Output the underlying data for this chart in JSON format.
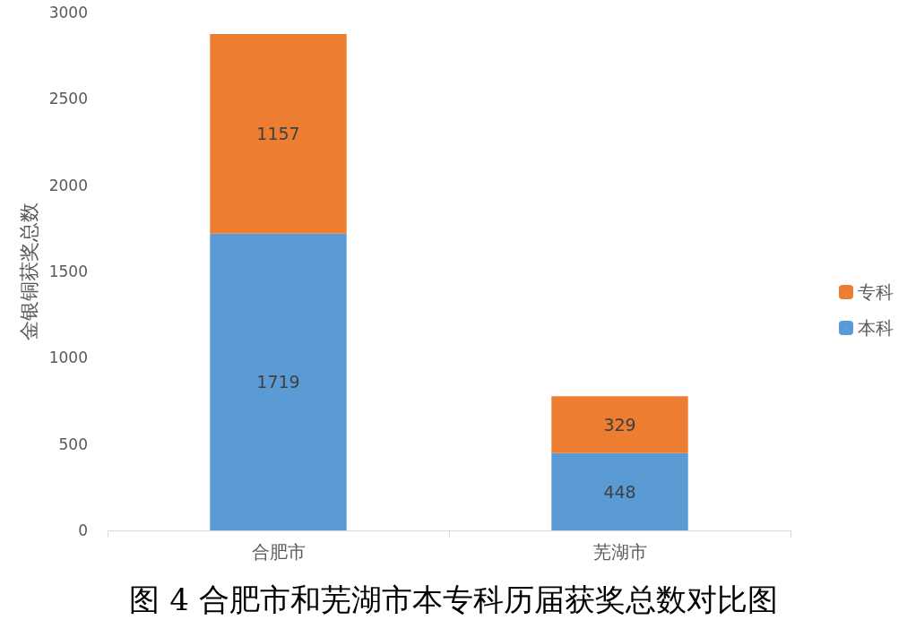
{
  "chart_data": {
    "type": "bar",
    "stacked": true,
    "categories": [
      "合肥市",
      "芜湖市"
    ],
    "series": [
      {
        "name": "本科",
        "color": "#5b9bd5",
        "values": [
          1719,
          448
        ]
      },
      {
        "name": "专科",
        "color": "#ed7d31",
        "values": [
          1157,
          329
        ]
      }
    ],
    "ylabel": "金银铜获奖总数",
    "ylim": [
      0,
      3000
    ],
    "yticks": [
      0,
      500,
      1000,
      1500,
      2000,
      2500,
      3000
    ],
    "grid": false,
    "legend": "right",
    "data_labels": true,
    "annotations": [
      "图 4 合肥市和芜湖市本专科历届获奖总数对比图"
    ]
  }
}
